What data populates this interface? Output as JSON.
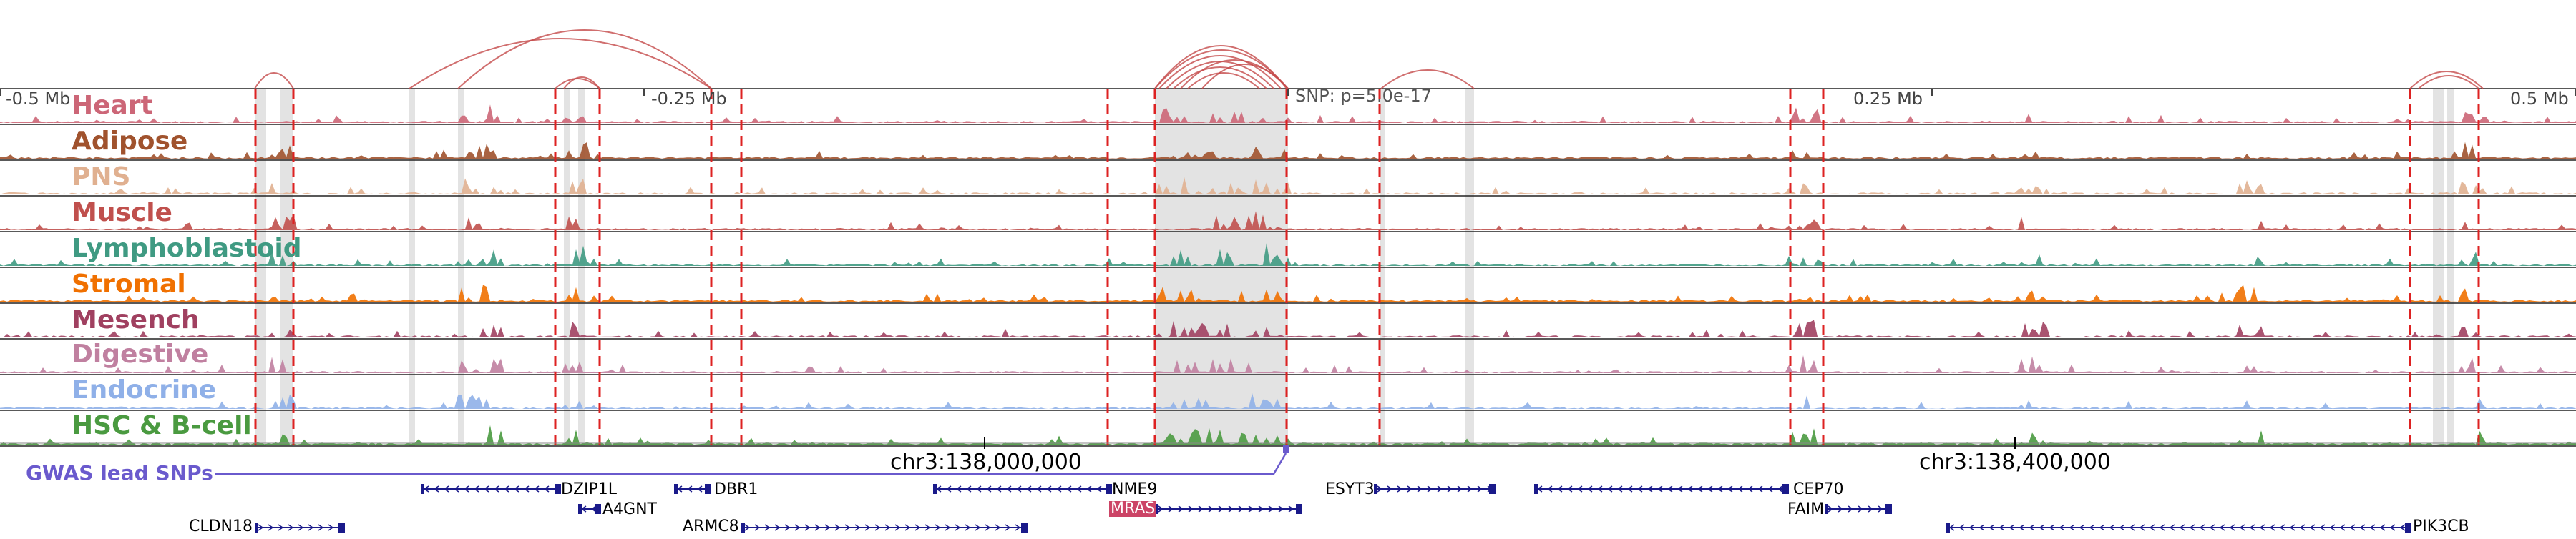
{
  "tracks": [
    {
      "name": "Heart",
      "color": "#cc6677"
    },
    {
      "name": "Adipose",
      "color": "#a0522d"
    },
    {
      "name": "PNS",
      "color": "#e0b090"
    },
    {
      "name": "Muscle",
      "color": "#c0504d"
    },
    {
      "name": "Lymphoblastoid",
      "color": "#3f9a82"
    },
    {
      "name": "Stromal",
      "color": "#f07000"
    },
    {
      "name": "Mesench",
      "color": "#a04060"
    },
    {
      "name": "Digestive",
      "color": "#c080a0"
    },
    {
      "name": "Endocrine",
      "color": "#8fb0e8"
    },
    {
      "name": "HSC & B-cell",
      "color": "#4a9a40"
    }
  ],
  "scale": {
    "left": "-0.5 Mb",
    "mid_left": "-0.25 Mb",
    "mid_right": "0.25 Mb",
    "right": "0.5 Mb"
  },
  "snp_label": "SNP: p=5.0e-17",
  "coords": {
    "first": "chr3:138,000,000",
    "second": "chr3:138,400,000"
  },
  "gwas": {
    "title": "GWAS lead SNPs"
  },
  "genes": [
    {
      "name": "DZIP1L",
      "strand": "-"
    },
    {
      "name": "DBR1",
      "strand": "-"
    },
    {
      "name": "NME9",
      "strand": "-"
    },
    {
      "name": "ESYT3",
      "strand": "+"
    },
    {
      "name": "CEP70",
      "strand": "-"
    },
    {
      "name": "A4GNT",
      "strand": "-"
    },
    {
      "name": "MRAS",
      "strand": "+",
      "highlighted": true
    },
    {
      "name": "FAIM",
      "strand": "+"
    },
    {
      "name": "CLDN18",
      "strand": "+"
    },
    {
      "name": "ARMC8",
      "strand": "+"
    },
    {
      "name": "PIK3CB",
      "strand": "-"
    }
  ],
  "colors": {
    "region_line": "#dd2222",
    "shade": "#d9d9d9",
    "arc": "#c44a4a",
    "gwas": "#6a5acd",
    "gene": "#1a1a8a",
    "highlight": "#cc4466"
  }
}
